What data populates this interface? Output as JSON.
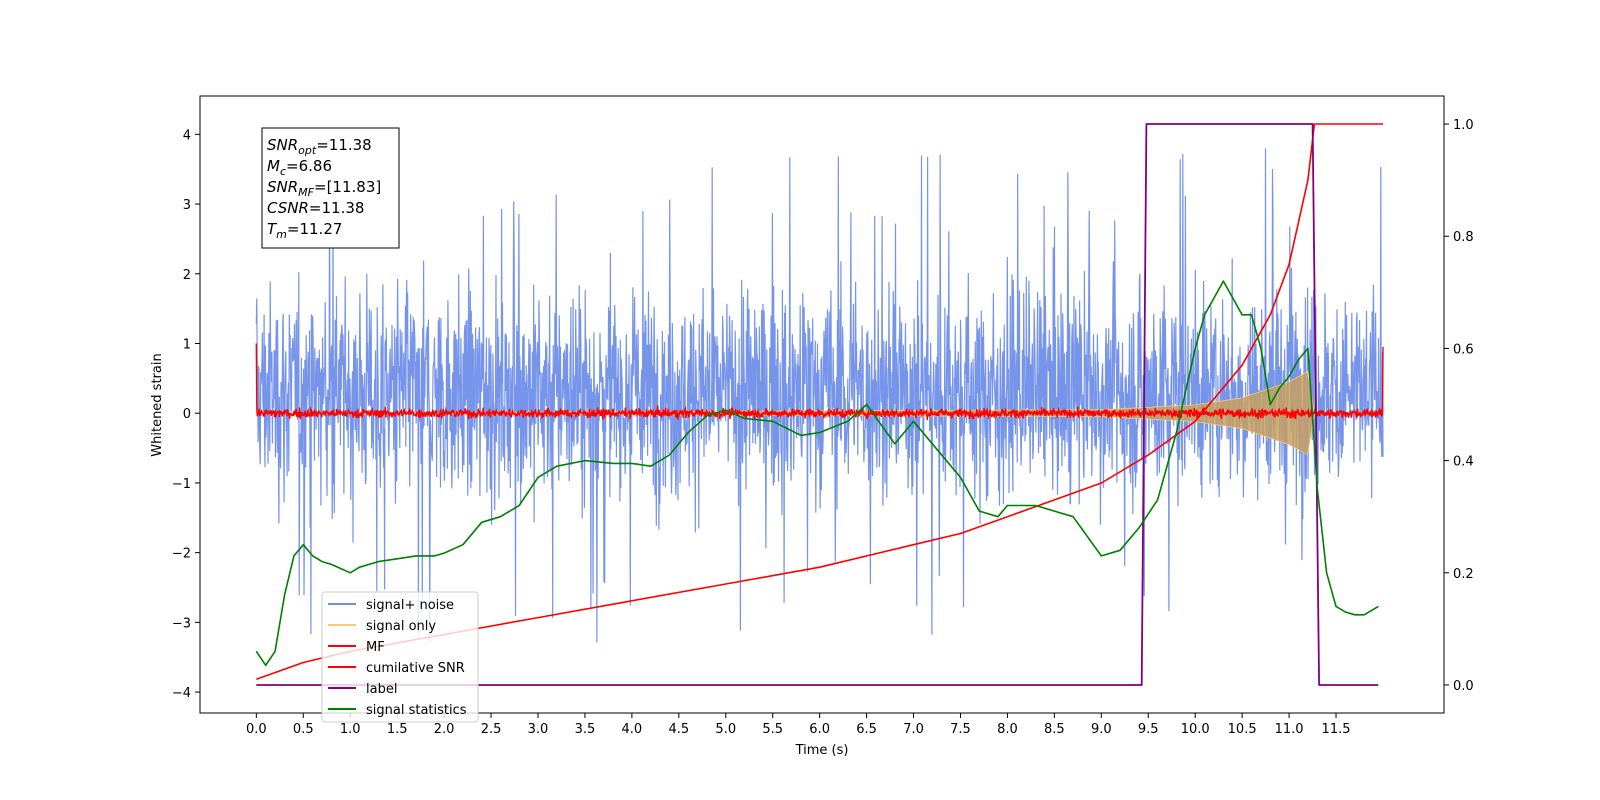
{
  "chart_data": {
    "type": "line",
    "xlabel": "Time (s)",
    "ylabel": "Whitened strain",
    "xlim": [
      -0.6,
      12.65
    ],
    "ylim_left": [
      -4.3,
      4.55
    ],
    "ylim_right": [
      -0.05,
      1.05
    ],
    "x_ticks": [
      0.0,
      0.5,
      1.0,
      1.5,
      2.0,
      2.5,
      3.0,
      3.5,
      4.0,
      4.5,
      5.0,
      5.5,
      6.0,
      6.5,
      7.0,
      7.5,
      8.0,
      8.5,
      9.0,
      9.5,
      10.0,
      10.5,
      11.0,
      11.5
    ],
    "x_tick_labels": [
      "0.0",
      "0.5",
      "1.0",
      "1.5",
      "2.0",
      "2.5",
      "3.0",
      "3.5",
      "4.0",
      "4.5",
      "5.0",
      "5.5",
      "6.0",
      "6.5",
      "7.0",
      "7.5",
      "8.0",
      "8.5",
      "9.0",
      "9.5",
      "10.0",
      "10.5",
      "11.0",
      "11.5"
    ],
    "y_left_ticks": [
      -4,
      -3,
      -2,
      -1,
      0,
      1,
      2,
      3,
      4
    ],
    "y_left_tick_labels": [
      "−4",
      "−3",
      "−2",
      "−1",
      "0",
      "1",
      "2",
      "3",
      "4"
    ],
    "y_right_ticks": [
      0.0,
      0.2,
      0.4,
      0.6,
      0.8,
      1.0
    ],
    "y_right_tick_labels": [
      "0.0",
      "0.2",
      "0.4",
      "0.6",
      "0.8",
      "1.0"
    ],
    "legend": {
      "placement": "lower-left",
      "entries": [
        {
          "label": "signal+ noise",
          "color": "#6f8ee8"
        },
        {
          "label": "signal only",
          "color": "#f5c97a"
        },
        {
          "label": "MF",
          "color": "#ff0000"
        },
        {
          "label": "cumilative SNR",
          "color": "#ff0000"
        },
        {
          "label": "label",
          "color": "#800080"
        },
        {
          "label": "signal statistics",
          "color": "#008000"
        }
      ]
    },
    "annotation": {
      "lines": [
        {
          "name": "SNR",
          "sub": "opt",
          "value": "=11.38"
        },
        {
          "name": "M",
          "sub": "c",
          "value": "=6.86"
        },
        {
          "name": "SNR",
          "sub": "MF",
          "value": "=[11.83]"
        },
        {
          "name": "CSNR",
          "sub": "",
          "value": "=11.38"
        },
        {
          "name": "T",
          "sub": "m",
          "value": "=11.27"
        }
      ]
    },
    "series": [
      {
        "name": "signal+ noise",
        "axis": "left",
        "style": "noise",
        "x_range": [
          0.0,
          12.0
        ],
        "typical_range": [
          -1.6,
          2.2
        ],
        "max": 4.2,
        "min": -3.85
      },
      {
        "name": "signal only",
        "axis": "left",
        "style": "chirp",
        "x_range": [
          0.0,
          11.27
        ],
        "envelope": {
          "x": [
            0.0,
            9.0,
            10.0,
            10.5,
            11.0,
            11.2,
            11.27
          ],
          "amplitude": [
            0.0,
            0.05,
            0.12,
            0.22,
            0.45,
            0.6,
            0.0
          ]
        }
      },
      {
        "name": "MF",
        "axis": "left",
        "style": "noise",
        "x_range": [
          0.0,
          12.0
        ],
        "typical_range": [
          -0.12,
          0.12
        ],
        "start_value": 1.0,
        "end_value": 0.95
      },
      {
        "name": "cumilative SNR",
        "axis": "right",
        "x": [
          0.0,
          0.5,
          1.0,
          2.0,
          3.0,
          4.0,
          5.0,
          6.0,
          7.0,
          7.5,
          8.0,
          8.5,
          9.0,
          9.5,
          10.0,
          10.5,
          10.8,
          11.0,
          11.2,
          11.27,
          12.0
        ],
        "y": [
          0.01,
          0.04,
          0.06,
          0.09,
          0.12,
          0.15,
          0.18,
          0.21,
          0.25,
          0.27,
          0.3,
          0.33,
          0.36,
          0.41,
          0.47,
          0.57,
          0.66,
          0.75,
          0.9,
          1.0,
          1.0
        ]
      },
      {
        "name": "label",
        "axis": "right",
        "x": [
          0.0,
          9.43,
          9.48,
          11.25,
          11.32,
          11.95
        ],
        "y": [
          0.0,
          0.0,
          1.0,
          1.0,
          0.0,
          0.0
        ]
      },
      {
        "name": "signal statistics",
        "axis": "right",
        "x": [
          0.0,
          0.1,
          0.2,
          0.3,
          0.4,
          0.5,
          0.6,
          0.7,
          0.8,
          1.0,
          1.1,
          1.3,
          1.5,
          1.7,
          1.9,
          2.0,
          2.2,
          2.4,
          2.6,
          2.8,
          3.0,
          3.2,
          3.5,
          3.8,
          4.0,
          4.2,
          4.4,
          4.6,
          4.8,
          5.0,
          5.2,
          5.5,
          5.8,
          6.0,
          6.3,
          6.5,
          6.8,
          7.0,
          7.2,
          7.5,
          7.7,
          7.9,
          8.0,
          8.3,
          8.5,
          8.7,
          9.0,
          9.2,
          9.4,
          9.6,
          9.8,
          10.0,
          10.1,
          10.3,
          10.5,
          10.6,
          10.7,
          10.8,
          10.9,
          11.0,
          11.1,
          11.2,
          11.3,
          11.4,
          11.5,
          11.6,
          11.7,
          11.8,
          11.95
        ],
        "y": [
          0.06,
          0.035,
          0.06,
          0.16,
          0.23,
          0.25,
          0.23,
          0.22,
          0.215,
          0.2,
          0.21,
          0.22,
          0.225,
          0.23,
          0.23,
          0.235,
          0.25,
          0.29,
          0.3,
          0.32,
          0.37,
          0.39,
          0.4,
          0.395,
          0.395,
          0.39,
          0.41,
          0.45,
          0.48,
          0.49,
          0.475,
          0.47,
          0.445,
          0.45,
          0.47,
          0.5,
          0.43,
          0.47,
          0.43,
          0.37,
          0.31,
          0.3,
          0.32,
          0.32,
          0.31,
          0.3,
          0.23,
          0.24,
          0.28,
          0.33,
          0.45,
          0.6,
          0.66,
          0.72,
          0.66,
          0.66,
          0.6,
          0.5,
          0.53,
          0.55,
          0.58,
          0.6,
          0.35,
          0.2,
          0.14,
          0.13,
          0.125,
          0.125,
          0.14
        ]
      }
    ]
  }
}
